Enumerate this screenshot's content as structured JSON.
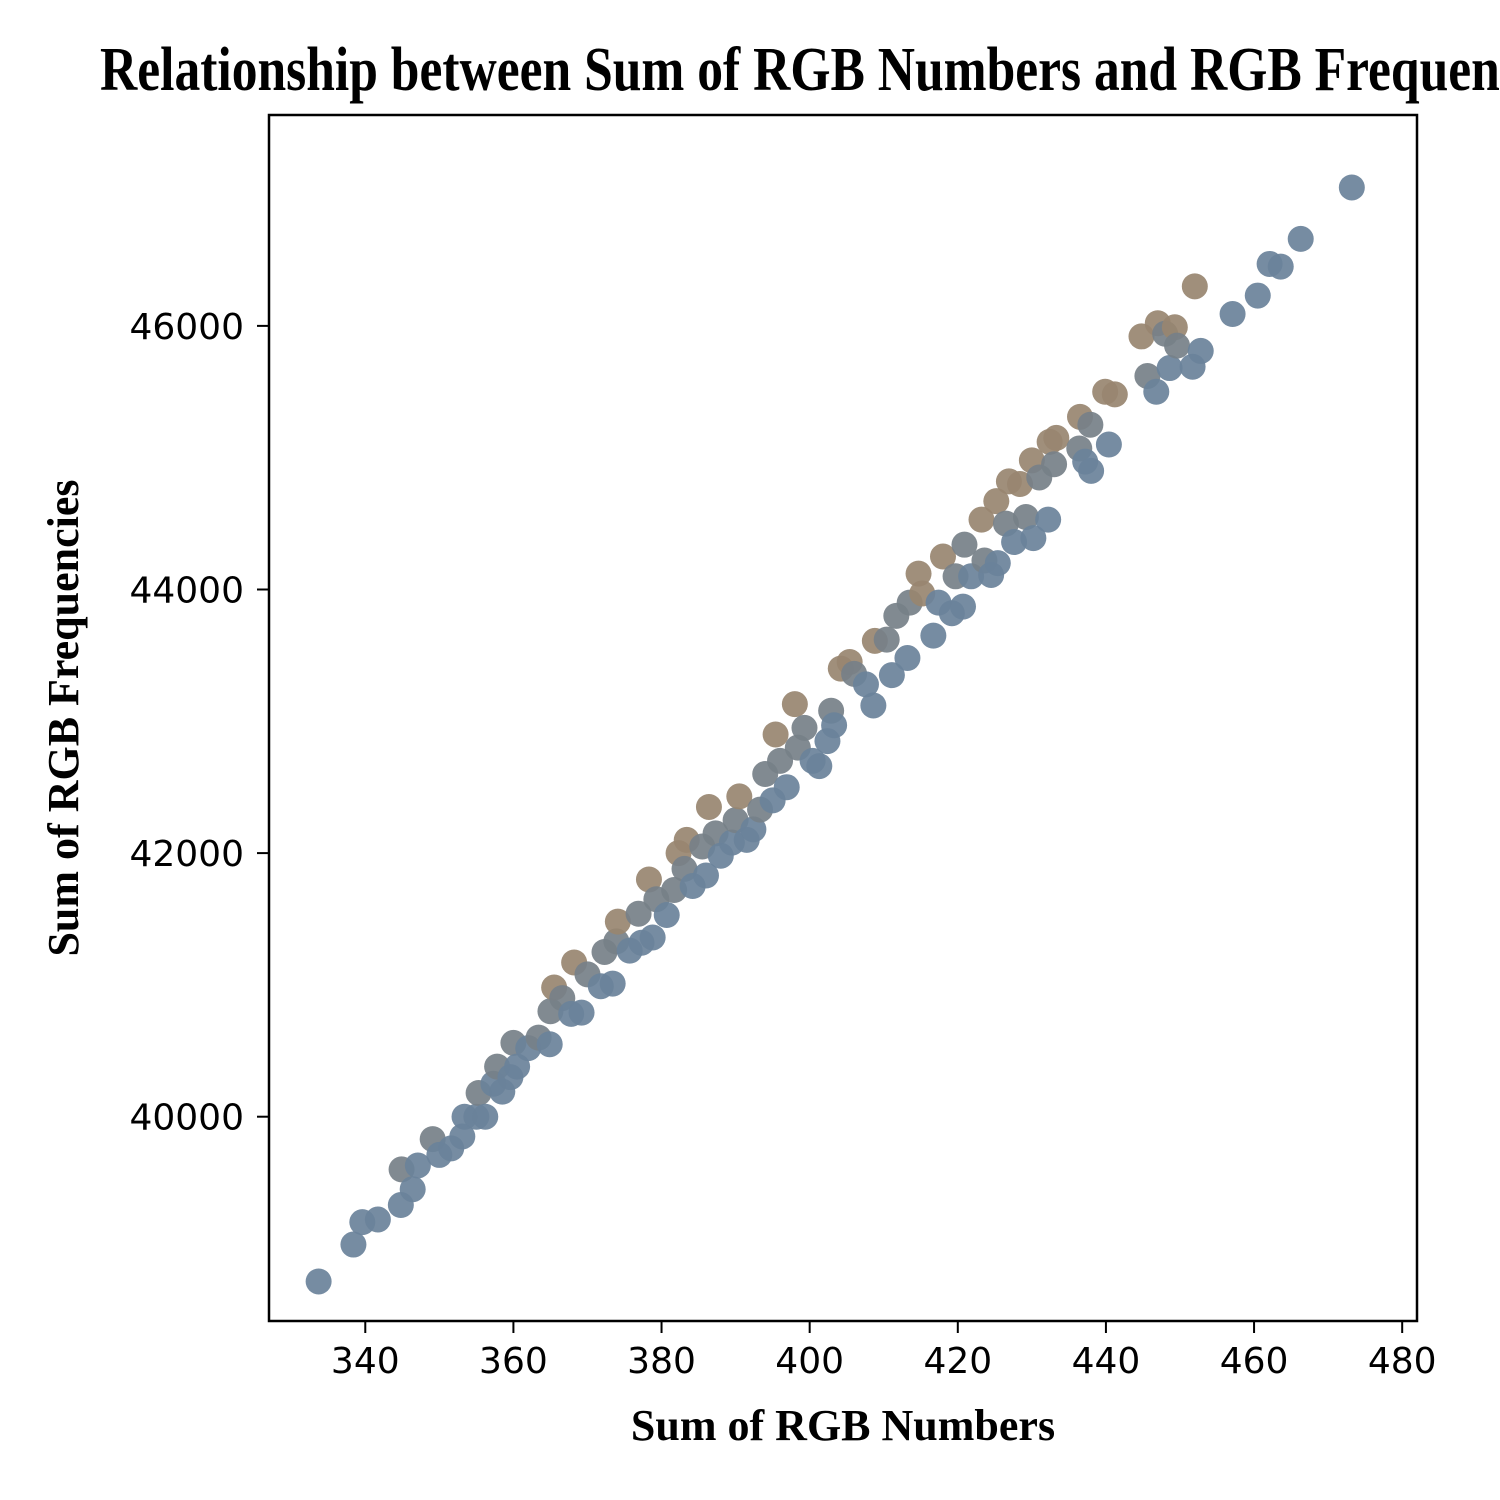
{
  "chart_data": {
    "type": "scatter",
    "title": "Relationship between Sum of RGB Numbers and RGB Frequencies",
    "xlabel": "Sum of RGB Numbers",
    "ylabel": "Sum of RGB Frequencies",
    "xlim": [
      327,
      482
    ],
    "ylim": [
      38450,
      47600
    ],
    "xticks": [
      340,
      360,
      380,
      400,
      420,
      440,
      460,
      480
    ],
    "yticks": [
      40000,
      42000,
      44000,
      46000
    ],
    "xtick_labels": [
      "340",
      "360",
      "380",
      "400",
      "420",
      "440",
      "460",
      "480"
    ],
    "ytick_labels": [
      "40000",
      "42000",
      "44000",
      "46000"
    ],
    "grid": false,
    "colors": {
      "blue": "#6a829a",
      "tan": "#988670",
      "gray": "#768088"
    },
    "points": [
      {
        "x": 333.7,
        "y": 38750,
        "c": "blue"
      },
      {
        "x": 338.4,
        "y": 39030,
        "c": "blue"
      },
      {
        "x": 339.6,
        "y": 39200,
        "c": "blue"
      },
      {
        "x": 341.7,
        "y": 39220,
        "c": "blue"
      },
      {
        "x": 344.8,
        "y": 39330,
        "c": "blue"
      },
      {
        "x": 344.9,
        "y": 39600,
        "c": "gray"
      },
      {
        "x": 346.4,
        "y": 39450,
        "c": "blue"
      },
      {
        "x": 347.1,
        "y": 39630,
        "c": "blue"
      },
      {
        "x": 349.1,
        "y": 39830,
        "c": "gray"
      },
      {
        "x": 350.0,
        "y": 39710,
        "c": "blue"
      },
      {
        "x": 351.6,
        "y": 39760,
        "c": "blue"
      },
      {
        "x": 353.1,
        "y": 39850,
        "c": "blue"
      },
      {
        "x": 353.4,
        "y": 40000,
        "c": "blue"
      },
      {
        "x": 355.0,
        "y": 40000,
        "c": "blue"
      },
      {
        "x": 355.3,
        "y": 40180,
        "c": "gray"
      },
      {
        "x": 356.2,
        "y": 40000,
        "c": "blue"
      },
      {
        "x": 357.3,
        "y": 40250,
        "c": "blue"
      },
      {
        "x": 357.8,
        "y": 40380,
        "c": "gray"
      },
      {
        "x": 358.5,
        "y": 40190,
        "c": "blue"
      },
      {
        "x": 359.6,
        "y": 40300,
        "c": "blue"
      },
      {
        "x": 360.0,
        "y": 40560,
        "c": "gray"
      },
      {
        "x": 360.5,
        "y": 40380,
        "c": "blue"
      },
      {
        "x": 362.0,
        "y": 40520,
        "c": "blue"
      },
      {
        "x": 363.4,
        "y": 40600,
        "c": "gray"
      },
      {
        "x": 364.9,
        "y": 40550,
        "c": "blue"
      },
      {
        "x": 365.0,
        "y": 40800,
        "c": "gray"
      },
      {
        "x": 365.5,
        "y": 40980,
        "c": "tan"
      },
      {
        "x": 366.6,
        "y": 40900,
        "c": "gray"
      },
      {
        "x": 367.8,
        "y": 40780,
        "c": "blue"
      },
      {
        "x": 368.2,
        "y": 41170,
        "c": "tan"
      },
      {
        "x": 369.2,
        "y": 40790,
        "c": "blue"
      },
      {
        "x": 370.0,
        "y": 41080,
        "c": "gray"
      },
      {
        "x": 371.8,
        "y": 40990,
        "c": "blue"
      },
      {
        "x": 372.3,
        "y": 41250,
        "c": "gray"
      },
      {
        "x": 373.4,
        "y": 41010,
        "c": "blue"
      },
      {
        "x": 373.9,
        "y": 41330,
        "c": "gray"
      },
      {
        "x": 374.1,
        "y": 41480,
        "c": "tan"
      },
      {
        "x": 375.7,
        "y": 41260,
        "c": "blue"
      },
      {
        "x": 376.9,
        "y": 41540,
        "c": "gray"
      },
      {
        "x": 377.3,
        "y": 41320,
        "c": "blue"
      },
      {
        "x": 378.3,
        "y": 41800,
        "c": "tan"
      },
      {
        "x": 378.8,
        "y": 41360,
        "c": "blue"
      },
      {
        "x": 379.3,
        "y": 41650,
        "c": "gray"
      },
      {
        "x": 380.7,
        "y": 41530,
        "c": "blue"
      },
      {
        "x": 381.7,
        "y": 41720,
        "c": "gray"
      },
      {
        "x": 382.3,
        "y": 42000,
        "c": "tan"
      },
      {
        "x": 383.1,
        "y": 41880,
        "c": "gray"
      },
      {
        "x": 383.4,
        "y": 42100,
        "c": "tan"
      },
      {
        "x": 384.2,
        "y": 41750,
        "c": "blue"
      },
      {
        "x": 385.5,
        "y": 42050,
        "c": "gray"
      },
      {
        "x": 386.0,
        "y": 41830,
        "c": "blue"
      },
      {
        "x": 386.4,
        "y": 42350,
        "c": "tan"
      },
      {
        "x": 387.3,
        "y": 42150,
        "c": "gray"
      },
      {
        "x": 388.0,
        "y": 41980,
        "c": "blue"
      },
      {
        "x": 389.5,
        "y": 42080,
        "c": "blue"
      },
      {
        "x": 390.0,
        "y": 42250,
        "c": "gray"
      },
      {
        "x": 390.5,
        "y": 42430,
        "c": "tan"
      },
      {
        "x": 391.5,
        "y": 42100,
        "c": "blue"
      },
      {
        "x": 392.4,
        "y": 42180,
        "c": "blue"
      },
      {
        "x": 393.3,
        "y": 42330,
        "c": "gray"
      },
      {
        "x": 394.0,
        "y": 42600,
        "c": "gray"
      },
      {
        "x": 395.0,
        "y": 42400,
        "c": "blue"
      },
      {
        "x": 395.4,
        "y": 42900,
        "c": "tan"
      },
      {
        "x": 396.0,
        "y": 42700,
        "c": "gray"
      },
      {
        "x": 396.9,
        "y": 42500,
        "c": "blue"
      },
      {
        "x": 398.0,
        "y": 43130,
        "c": "tan"
      },
      {
        "x": 398.4,
        "y": 42800,
        "c": "gray"
      },
      {
        "x": 399.3,
        "y": 42950,
        "c": "gray"
      },
      {
        "x": 400.4,
        "y": 42700,
        "c": "blue"
      },
      {
        "x": 401.3,
        "y": 42660,
        "c": "blue"
      },
      {
        "x": 402.4,
        "y": 42850,
        "c": "blue"
      },
      {
        "x": 402.9,
        "y": 43080,
        "c": "gray"
      },
      {
        "x": 403.3,
        "y": 42970,
        "c": "blue"
      },
      {
        "x": 404.2,
        "y": 43400,
        "c": "tan"
      },
      {
        "x": 405.4,
        "y": 43450,
        "c": "tan"
      },
      {
        "x": 406.0,
        "y": 43360,
        "c": "gray"
      },
      {
        "x": 407.6,
        "y": 43280,
        "c": "blue"
      },
      {
        "x": 408.6,
        "y": 43120,
        "c": "blue"
      },
      {
        "x": 408.8,
        "y": 43610,
        "c": "tan"
      },
      {
        "x": 410.4,
        "y": 43620,
        "c": "gray"
      },
      {
        "x": 411.1,
        "y": 43350,
        "c": "blue"
      },
      {
        "x": 411.7,
        "y": 43800,
        "c": "gray"
      },
      {
        "x": 413.2,
        "y": 43480,
        "c": "blue"
      },
      {
        "x": 413.5,
        "y": 43900,
        "c": "gray"
      },
      {
        "x": 414.7,
        "y": 44120,
        "c": "tan"
      },
      {
        "x": 415.2,
        "y": 43970,
        "c": "tan"
      },
      {
        "x": 416.7,
        "y": 43650,
        "c": "blue"
      },
      {
        "x": 417.4,
        "y": 43900,
        "c": "blue"
      },
      {
        "x": 418.0,
        "y": 44250,
        "c": "tan"
      },
      {
        "x": 419.2,
        "y": 43820,
        "c": "blue"
      },
      {
        "x": 419.7,
        "y": 44100,
        "c": "gray"
      },
      {
        "x": 420.7,
        "y": 43870,
        "c": "blue"
      },
      {
        "x": 420.9,
        "y": 44340,
        "c": "gray"
      },
      {
        "x": 421.8,
        "y": 44100,
        "c": "blue"
      },
      {
        "x": 423.2,
        "y": 44530,
        "c": "tan"
      },
      {
        "x": 423.6,
        "y": 44220,
        "c": "gray"
      },
      {
        "x": 424.5,
        "y": 44110,
        "c": "blue"
      },
      {
        "x": 425.2,
        "y": 44670,
        "c": "tan"
      },
      {
        "x": 425.4,
        "y": 44200,
        "c": "blue"
      },
      {
        "x": 426.5,
        "y": 44500,
        "c": "gray"
      },
      {
        "x": 426.9,
        "y": 44820,
        "c": "tan"
      },
      {
        "x": 427.6,
        "y": 44360,
        "c": "blue"
      },
      {
        "x": 428.4,
        "y": 44800,
        "c": "tan"
      },
      {
        "x": 429.2,
        "y": 44550,
        "c": "gray"
      },
      {
        "x": 430.0,
        "y": 44980,
        "c": "tan"
      },
      {
        "x": 430.2,
        "y": 44390,
        "c": "blue"
      },
      {
        "x": 431.0,
        "y": 44850,
        "c": "gray"
      },
      {
        "x": 432.2,
        "y": 44530,
        "c": "blue"
      },
      {
        "x": 432.4,
        "y": 45120,
        "c": "tan"
      },
      {
        "x": 433.0,
        "y": 44950,
        "c": "gray"
      },
      {
        "x": 433.3,
        "y": 45150,
        "c": "tan"
      },
      {
        "x": 436.4,
        "y": 45070,
        "c": "gray"
      },
      {
        "x": 436.5,
        "y": 45310,
        "c": "tan"
      },
      {
        "x": 437.2,
        "y": 44970,
        "c": "blue"
      },
      {
        "x": 437.9,
        "y": 45250,
        "c": "gray"
      },
      {
        "x": 438.0,
        "y": 44900,
        "c": "blue"
      },
      {
        "x": 439.9,
        "y": 45500,
        "c": "tan"
      },
      {
        "x": 440.4,
        "y": 45100,
        "c": "blue"
      },
      {
        "x": 441.2,
        "y": 45480,
        "c": "tan"
      },
      {
        "x": 444.8,
        "y": 45920,
        "c": "tan"
      },
      {
        "x": 445.6,
        "y": 45620,
        "c": "gray"
      },
      {
        "x": 446.8,
        "y": 45500,
        "c": "blue"
      },
      {
        "x": 447.0,
        "y": 46020,
        "c": "tan"
      },
      {
        "x": 448.0,
        "y": 45940,
        "c": "gray"
      },
      {
        "x": 448.6,
        "y": 45680,
        "c": "blue"
      },
      {
        "x": 449.3,
        "y": 45990,
        "c": "tan"
      },
      {
        "x": 449.6,
        "y": 45850,
        "c": "gray"
      },
      {
        "x": 451.7,
        "y": 45690,
        "c": "blue"
      },
      {
        "x": 452.0,
        "y": 46300,
        "c": "tan"
      },
      {
        "x": 452.8,
        "y": 45810,
        "c": "blue"
      },
      {
        "x": 457.1,
        "y": 46090,
        "c": "blue"
      },
      {
        "x": 460.5,
        "y": 46230,
        "c": "blue"
      },
      {
        "x": 462.1,
        "y": 46470,
        "c": "blue"
      },
      {
        "x": 463.6,
        "y": 46450,
        "c": "blue"
      },
      {
        "x": 466.3,
        "y": 46660,
        "c": "blue"
      },
      {
        "x": 473.2,
        "y": 47050,
        "c": "blue"
      }
    ]
  }
}
